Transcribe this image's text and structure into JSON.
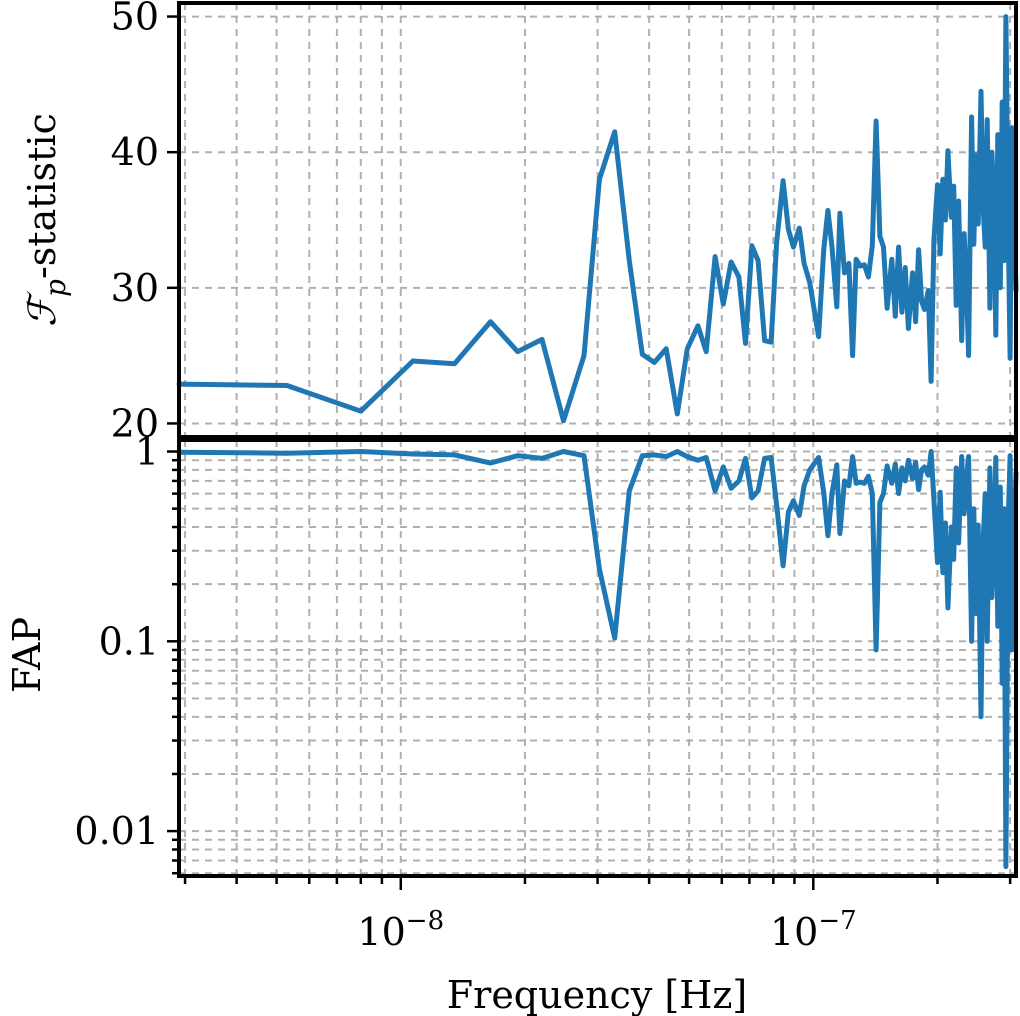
{
  "chart_data": [
    {
      "type": "line",
      "panel": "top",
      "ylabel_main": "ℱ",
      "ylabel_sub": "p",
      "ylabel_rest": "-statistic",
      "xlabel": "",
      "xscale": "log",
      "xlim": [
        2.9e-09,
        3.1e-07
      ],
      "ylim": [
        19,
        51
      ],
      "yticks": [
        20,
        30,
        40,
        50
      ],
      "ytick_labels": [
        "20",
        "30",
        "40",
        "50"
      ],
      "grid": true,
      "color": "#1f77b4",
      "x": [
        2.9e-09,
        5.3e-09,
        8e-09,
        1.07e-08,
        1.35e-08,
        1.65e-08,
        1.92e-08,
        2.2e-08,
        2.48e-08,
        2.78e-08,
        3.03e-08,
        3.3e-08,
        3.58e-08,
        3.85e-08,
        4.12e-08,
        4.4e-08,
        4.68e-08,
        4.95e-08,
        5.25e-08,
        5.5e-08,
        5.78e-08,
        6.05e-08,
        6.32e-08,
        6.6e-08,
        6.85e-08,
        7.1e-08,
        7.35e-08,
        7.62e-08,
        7.9e-08,
        8.15e-08,
        8.45e-08,
        8.7e-08,
        8.95e-08,
        9.25e-08,
        9.5e-08,
        9.8e-08,
        1.03e-07,
        1.06e-07,
        1.085e-07,
        1.11e-07,
        1.14e-07,
        1.16e-07,
        1.19e-07,
        1.22e-07,
        1.245e-07,
        1.27e-07,
        1.3e-07,
        1.33e-07,
        1.36e-07,
        1.39e-07,
        1.42e-07,
        1.45e-07,
        1.48e-07,
        1.51e-07,
        1.55e-07,
        1.58e-07,
        1.61e-07,
        1.64e-07,
        1.67e-07,
        1.7e-07,
        1.74e-07,
        1.77e-07,
        1.8e-07,
        1.83e-07,
        1.86e-07,
        1.9e-07,
        1.93e-07,
        1.96e-07,
        2e-07,
        2.03e-07,
        2.06e-07,
        2.09e-07,
        2.12e-07,
        2.16e-07,
        2.19e-07,
        2.22e-07,
        2.25e-07,
        2.29e-07,
        2.32e-07,
        2.35e-07,
        2.38e-07,
        2.42e-07,
        2.45e-07,
        2.48e-07,
        2.51e-07,
        2.55e-07,
        2.58e-07,
        2.61e-07,
        2.64e-07,
        2.68e-07,
        2.71e-07,
        2.74e-07,
        2.77e-07,
        2.8e-07,
        2.84e-07,
        2.87e-07,
        2.9e-07,
        2.93e-07,
        2.97e-07,
        3e-07,
        3.03e-07,
        3.06e-07,
        3.1e-07
      ],
      "y": [
        22.9,
        22.8,
        20.9,
        24.6,
        24.4,
        27.5,
        25.3,
        26.2,
        20.2,
        25.0,
        38.0,
        41.5,
        32.0,
        25.1,
        24.5,
        25.5,
        20.7,
        25.5,
        27.2,
        25.3,
        32.3,
        28.8,
        31.9,
        30.8,
        25.9,
        33.1,
        32.0,
        26.1,
        26.0,
        33.4,
        37.9,
        34.3,
        33.0,
        34.4,
        31.8,
        30.4,
        26.4,
        32.8,
        35.7,
        33.0,
        28.6,
        35.5,
        31.1,
        31.8,
        25.0,
        32.1,
        31.6,
        31.7,
        30.8,
        33.1,
        42.3,
        33.8,
        33.0,
        28.5,
        32.1,
        27.9,
        33.0,
        28.2,
        31.5,
        27.0,
        31.1,
        27.5,
        32.8,
        29.0,
        28.4,
        29.8,
        23.1,
        33.5,
        37.6,
        32.5,
        38.0,
        35.0,
        40.1,
        35.2,
        37.5,
        28.7,
        36.4,
        26.1,
        34.0,
        30.5,
        25.0,
        42.6,
        33.2,
        39.8,
        34.7,
        44.5,
        36.0,
        33.0,
        42.4,
        28.5,
        40.0,
        36.3,
        26.5,
        41.3,
        30.0,
        43.7,
        32.0,
        50.0,
        34.0,
        24.8,
        41.8,
        36.0,
        29.8
      ]
    },
    {
      "type": "line",
      "panel": "bottom",
      "ylabel": "FAP",
      "xlabel": "Frequency [Hz]",
      "xscale": "log",
      "yscale": "log",
      "xlim": [
        2.9e-09,
        3.1e-07
      ],
      "ylim": [
        0.0058,
        1.15
      ],
      "yticks": [
        1,
        0.1,
        0.01
      ],
      "ytick_labels": [
        "1",
        "0.1",
        "0.01"
      ],
      "xticks": [
        1e-08,
        1e-07
      ],
      "xtick_base": "10",
      "xtick_exponents": [
        "−8",
        "−7"
      ],
      "grid": true,
      "color": "#1f77b4",
      "x": [
        2.9e-09,
        5.3e-09,
        8e-09,
        1.07e-08,
        1.35e-08,
        1.65e-08,
        1.92e-08,
        2.2e-08,
        2.48e-08,
        2.78e-08,
        3.03e-08,
        3.3e-08,
        3.58e-08,
        3.85e-08,
        4.12e-08,
        4.4e-08,
        4.68e-08,
        4.95e-08,
        5.25e-08,
        5.5e-08,
        5.78e-08,
        6.05e-08,
        6.32e-08,
        6.6e-08,
        6.85e-08,
        7.1e-08,
        7.35e-08,
        7.62e-08,
        7.9e-08,
        8.15e-08,
        8.45e-08,
        8.7e-08,
        8.95e-08,
        9.25e-08,
        9.5e-08,
        9.8e-08,
        1.03e-07,
        1.06e-07,
        1.085e-07,
        1.11e-07,
        1.14e-07,
        1.16e-07,
        1.19e-07,
        1.22e-07,
        1.245e-07,
        1.27e-07,
        1.3e-07,
        1.33e-07,
        1.36e-07,
        1.39e-07,
        1.42e-07,
        1.45e-07,
        1.48e-07,
        1.51e-07,
        1.55e-07,
        1.58e-07,
        1.61e-07,
        1.64e-07,
        1.67e-07,
        1.7e-07,
        1.74e-07,
        1.77e-07,
        1.8e-07,
        1.83e-07,
        1.86e-07,
        1.9e-07,
        1.93e-07,
        1.96e-07,
        2e-07,
        2.03e-07,
        2.06e-07,
        2.09e-07,
        2.12e-07,
        2.16e-07,
        2.19e-07,
        2.22e-07,
        2.25e-07,
        2.29e-07,
        2.32e-07,
        2.35e-07,
        2.38e-07,
        2.42e-07,
        2.45e-07,
        2.48e-07,
        2.51e-07,
        2.55e-07,
        2.58e-07,
        2.61e-07,
        2.64e-07,
        2.68e-07,
        2.71e-07,
        2.74e-07,
        2.77e-07,
        2.8e-07,
        2.84e-07,
        2.87e-07,
        2.9e-07,
        2.93e-07,
        2.97e-07,
        3e-07,
        3.03e-07,
        3.06e-07,
        3.1e-07
      ],
      "y": [
        0.99,
        0.98,
        1.0,
        0.97,
        0.96,
        0.87,
        0.95,
        0.92,
        1.0,
        0.95,
        0.24,
        0.104,
        0.62,
        0.95,
        0.96,
        0.94,
        1.0,
        0.94,
        0.9,
        0.93,
        0.62,
        0.83,
        0.64,
        0.7,
        0.92,
        0.57,
        0.62,
        0.92,
        0.93,
        0.52,
        0.25,
        0.48,
        0.55,
        0.46,
        0.66,
        0.8,
        0.93,
        0.61,
        0.36,
        0.6,
        0.85,
        0.37,
        0.7,
        0.66,
        0.94,
        0.68,
        0.69,
        0.68,
        0.74,
        0.6,
        0.09,
        0.54,
        0.6,
        0.84,
        0.68,
        0.86,
        0.6,
        0.82,
        0.7,
        0.9,
        0.72,
        0.88,
        0.63,
        0.8,
        0.83,
        0.75,
        1.0,
        0.56,
        0.26,
        0.61,
        0.23,
        0.42,
        0.15,
        0.4,
        0.27,
        0.82,
        0.33,
        0.94,
        0.47,
        0.72,
        0.94,
        0.1,
        0.5,
        0.14,
        0.41,
        0.04,
        0.33,
        0.6,
        0.1,
        0.82,
        0.17,
        0.33,
        0.93,
        0.12,
        0.65,
        0.06,
        0.5,
        0.0065,
        0.45,
        0.95,
        0.09,
        0.33,
        0.77
      ]
    }
  ]
}
